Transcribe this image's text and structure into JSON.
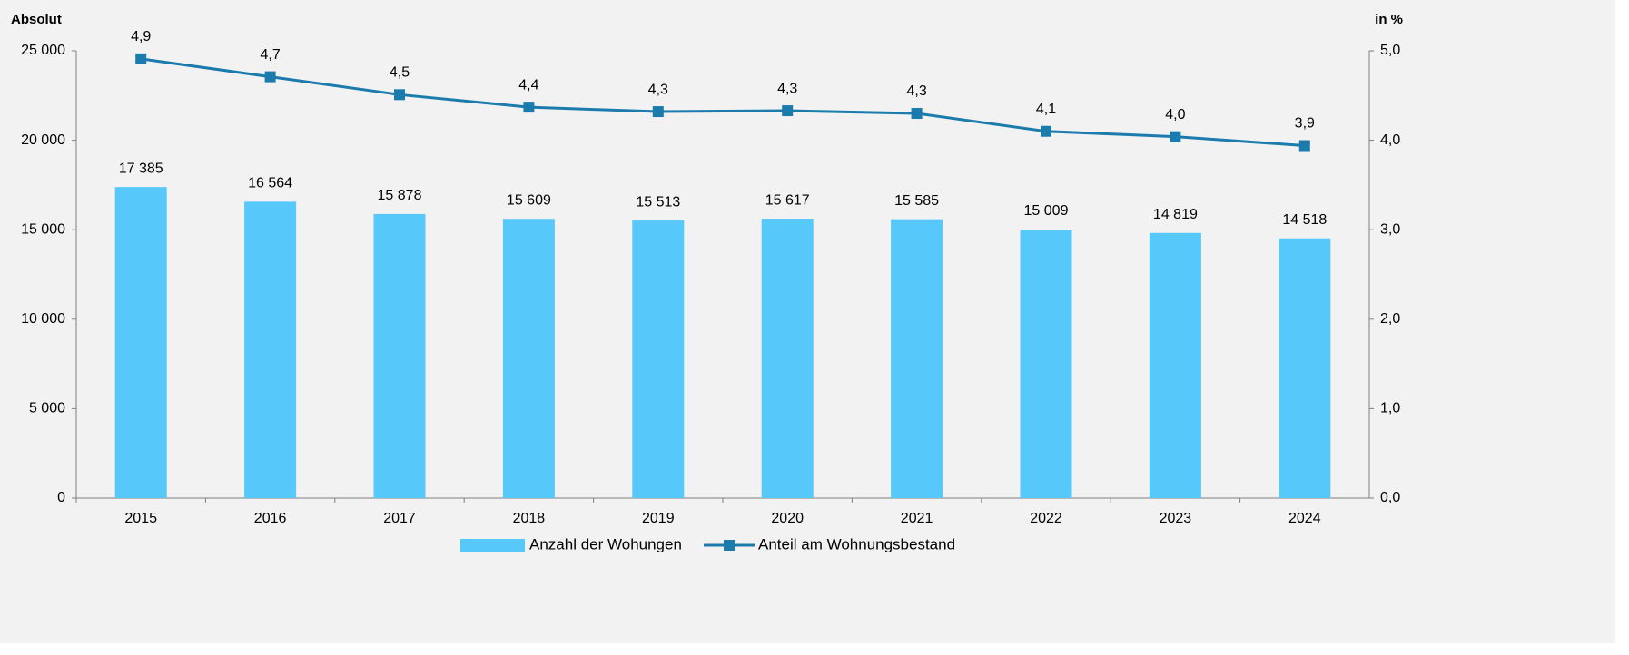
{
  "chart_data": {
    "type": "bar",
    "ylabel": "Absolut",
    "y2label": "in %",
    "categories": [
      "2015",
      "2016",
      "2017",
      "2018",
      "2019",
      "2020",
      "2021",
      "2022",
      "2023",
      "2024"
    ],
    "series": [
      {
        "name": "Anzahl der Wohungen",
        "type": "bar",
        "color": "#56c8fa",
        "values": [
          17385,
          16564,
          15878,
          15609,
          15513,
          15617,
          15585,
          15009,
          14819,
          14518
        ],
        "value_labels": [
          "17 385",
          "16 564",
          "15 878",
          "15 609",
          "15 513",
          "15 617",
          "15 585",
          "15 009",
          "14 819",
          "14 518"
        ]
      },
      {
        "name": "Anteil am Wohnungsbestand",
        "type": "line",
        "axis": "y2",
        "color": "#1b7bac",
        "values": [
          4.91,
          4.71,
          4.51,
          4.37,
          4.32,
          4.33,
          4.3,
          4.1,
          4.04,
          3.94
        ],
        "value_labels": [
          "4,9",
          "4,7",
          "4,5",
          "4,4",
          "4,3",
          "4,3",
          "4,3",
          "4,1",
          "4,0",
          "3,9"
        ]
      }
    ],
    "ylim": [
      0,
      25000
    ],
    "yticks": [
      0,
      {
        "value": 5000,
        "label": "5 000"
      },
      {
        "value": 10000,
        "label": "10 000"
      },
      {
        "value": 15000,
        "label": "15 000"
      },
      {
        "value": 20000,
        "label": "20 000"
      },
      {
        "value": 25000,
        "label": "25 000"
      }
    ],
    "y2lim": [
      0,
      5
    ],
    "y2ticks": [
      {
        "value": 0,
        "label": "0,0"
      },
      {
        "value": 1,
        "label": "1,0"
      },
      {
        "value": 2,
        "label": "2,0"
      },
      {
        "value": 3,
        "label": "3,0"
      },
      {
        "value": 4,
        "label": "4,0"
      },
      {
        "value": 5,
        "label": "5,0"
      }
    ],
    "grid": false,
    "legend": "bottom"
  }
}
